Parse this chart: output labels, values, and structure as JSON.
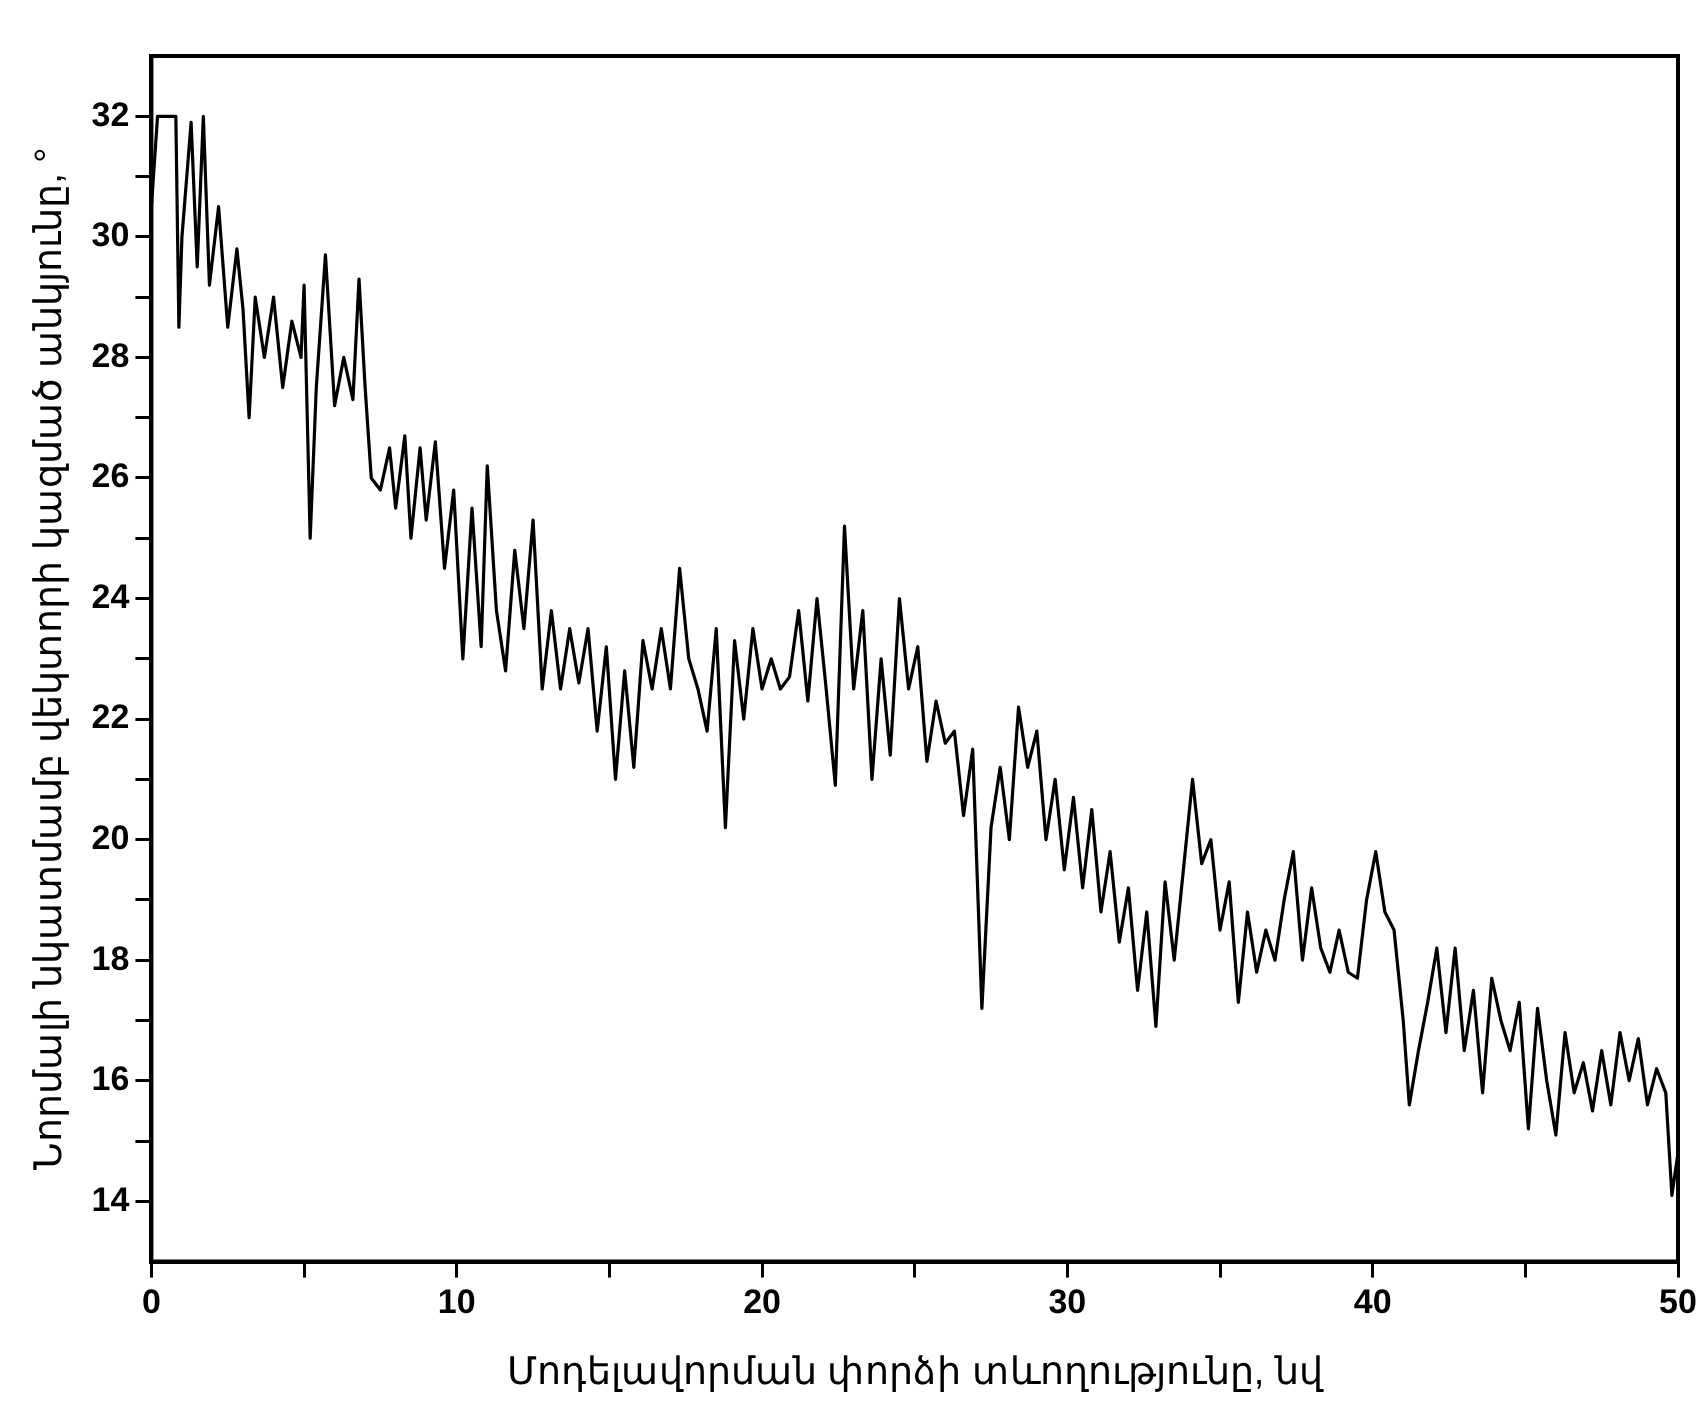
{
  "chart_data": {
    "type": "line",
    "xlabel": "Մոդելավորման փորձի տևողությունը, նվ",
    "ylabel": "Նորմալի նկատմամբ վեկտորի կազմած անկյունը, °",
    "xlim": [
      0,
      50
    ],
    "xticks": [
      0,
      {
        "value": 5,
        "label": null
      },
      10,
      {
        "value": 15,
        "label": null
      },
      20,
      {
        "value": 25,
        "label": null
      },
      30,
      {
        "value": 35,
        "label": null
      },
      40,
      {
        "value": 45,
        "label": null
      },
      50
    ],
    "ylim": [
      13,
      33
    ],
    "yticks": [
      14,
      {
        "value": 15,
        "label": null
      },
      16,
      {
        "value": 17,
        "label": null
      },
      18,
      {
        "value": 19,
        "label": null
      },
      20,
      {
        "value": 21,
        "label": null
      },
      22,
      {
        "value": 23,
        "label": null
      },
      24,
      {
        "value": 25,
        "label": null
      },
      26,
      {
        "value": 27,
        "label": null
      },
      28,
      {
        "value": 29,
        "label": null
      },
      30,
      {
        "value": 31,
        "label": null
      },
      32
    ],
    "grid": false,
    "marker": "none",
    "line_style": "solid",
    "series": [
      {
        "color": "#000000",
        "x": [
          0,
          0.2,
          0.8,
          0.9,
          1.0,
          1.3,
          1.5,
          1.7,
          1.9,
          2.2,
          2.5,
          2.8,
          3.0,
          3.2,
          3.4,
          3.7,
          4.0,
          4.3,
          4.6,
          4.9,
          5.0,
          5.2,
          5.4,
          5.7,
          6.0,
          6.3,
          6.6,
          6.8,
          7.0,
          7.2,
          7.5,
          7.8,
          8.0,
          8.3,
          8.5,
          8.8,
          9.0,
          9.3,
          9.6,
          9.9,
          10.2,
          10.5,
          10.8,
          11.0,
          11.3,
          11.6,
          11.9,
          12.2,
          12.5,
          12.8,
          13.1,
          13.4,
          13.7,
          14.0,
          14.3,
          14.6,
          14.9,
          15.2,
          15.5,
          15.8,
          16.1,
          16.4,
          16.7,
          17.0,
          17.3,
          17.6,
          17.9,
          18.2,
          18.5,
          18.8,
          19.1,
          19.4,
          19.7,
          20.0,
          20.3,
          20.6,
          20.9,
          21.2,
          21.5,
          21.8,
          22.1,
          22.4,
          22.7,
          23.0,
          23.3,
          23.6,
          23.9,
          24.2,
          24.5,
          24.8,
          25.1,
          25.4,
          25.7,
          26.0,
          26.3,
          26.6,
          26.9,
          27.2,
          27.5,
          27.8,
          28.1,
          28.4,
          28.7,
          29.0,
          29.3,
          29.6,
          29.9,
          30.2,
          30.5,
          30.8,
          31.1,
          31.4,
          31.7,
          32.0,
          32.3,
          32.6,
          32.9,
          33.2,
          33.5,
          33.8,
          34.1,
          34.4,
          34.7,
          35.0,
          35.3,
          35.6,
          35.9,
          36.2,
          36.5,
          36.8,
          37.1,
          37.4,
          37.7,
          38.0,
          38.3,
          38.6,
          38.9,
          39.2,
          39.5,
          39.8,
          40.1,
          40.4,
          40.7,
          41.0,
          41.2,
          41.5,
          41.8,
          42.1,
          42.4,
          42.7,
          43.0,
          43.3,
          43.6,
          43.9,
          44.2,
          44.5,
          44.8,
          45.1,
          45.4,
          45.7,
          46.0,
          46.3,
          46.6,
          46.9,
          47.2,
          47.5,
          47.8,
          48.1,
          48.4,
          48.7,
          49.0,
          49.3,
          49.6,
          49.8,
          50
        ],
        "values": [
          30.5,
          32,
          32,
          28.5,
          30,
          31.9,
          29.5,
          32,
          29.2,
          30.5,
          28.5,
          29.8,
          28.8,
          27,
          29,
          28,
          29,
          27.5,
          28.6,
          28,
          29.2,
          25,
          27.5,
          29.7,
          27.2,
          28,
          27.3,
          29.3,
          27.5,
          26,
          25.8,
          26.5,
          25.5,
          26.7,
          25,
          26.5,
          25.3,
          26.6,
          24.5,
          25.8,
          23,
          25.5,
          23.2,
          26.2,
          23.8,
          22.8,
          24.8,
          23.5,
          25.3,
          22.5,
          23.8,
          22.5,
          23.5,
          22.6,
          23.5,
          21.8,
          23.2,
          21,
          22.8,
          21.2,
          23.3,
          22.5,
          23.5,
          22.5,
          24.5,
          23,
          22.5,
          21.8,
          23.5,
          20.2,
          23.3,
          22,
          23.5,
          22.5,
          23,
          22.5,
          22.7,
          23.8,
          22.3,
          24,
          22.5,
          20.9,
          25.2,
          22.5,
          23.8,
          21,
          23,
          21.4,
          24,
          22.5,
          23.2,
          21.3,
          22.3,
          21.6,
          21.8,
          20.4,
          21.5,
          17.2,
          20.2,
          21.2,
          20,
          22.2,
          21.2,
          21.8,
          20,
          21,
          19.5,
          20.7,
          19.2,
          20.5,
          18.8,
          19.8,
          18.3,
          19.2,
          17.5,
          18.8,
          16.9,
          19.3,
          18,
          19.5,
          21,
          19.6,
          20,
          18.5,
          19.3,
          17.3,
          18.8,
          17.8,
          18.5,
          18,
          19,
          19.8,
          18,
          19.2,
          18.2,
          17.8,
          18.5,
          17.8,
          17.7,
          19,
          19.8,
          18.8,
          18.5,
          17,
          15.6,
          16.5,
          17.3,
          18.2,
          16.8,
          18.2,
          16.5,
          17.5,
          15.8,
          17.7,
          17,
          16.5,
          17.3,
          15.2,
          17.2,
          16,
          15.1,
          16.8,
          15.8,
          16.3,
          15.5,
          16.5,
          15.6,
          16.8,
          16,
          16.7,
          15.6,
          16.2,
          15.8,
          14.1,
          14.8
        ]
      }
    ]
  }
}
